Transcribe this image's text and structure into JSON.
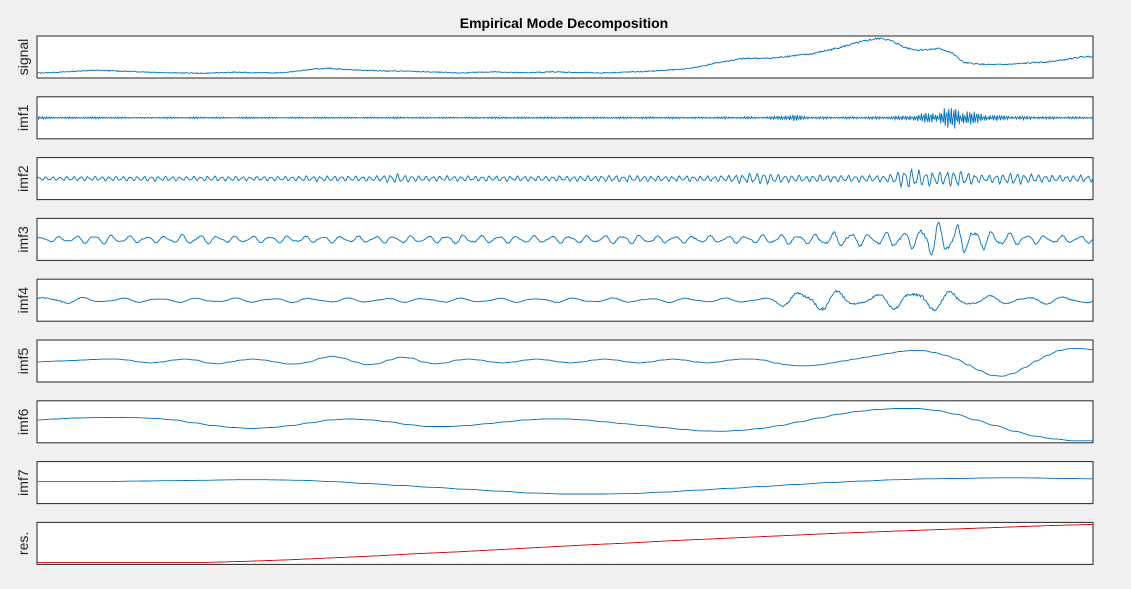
{
  "chart_data": {
    "type": "line",
    "title": "Empirical Mode Decomposition",
    "xlabel": "",
    "grid": false,
    "legend": "none",
    "colors": {
      "series": "#0072bd",
      "residual": "#d40000",
      "axes": "#262626",
      "background": "#f0f0f0",
      "plot_bg": "#ffffff"
    },
    "shared_x_range": [
      0,
      1
    ],
    "panels": [
      {
        "name": "signal",
        "ylabel": "signal",
        "color": "#0072bd",
        "ylim": [
          0,
          1
        ],
        "values": [
          0.08,
          0.09,
          0.1,
          0.12,
          0.14,
          0.15,
          0.14,
          0.13,
          0.12,
          0.11,
          0.1,
          0.09,
          0.08,
          0.08,
          0.07,
          0.08,
          0.09,
          0.1,
          0.09,
          0.09,
          0.08,
          0.09,
          0.12,
          0.16,
          0.19,
          0.2,
          0.18,
          0.16,
          0.15,
          0.14,
          0.13,
          0.13,
          0.12,
          0.11,
          0.1,
          0.09,
          0.08,
          0.09,
          0.1,
          0.11,
          0.1,
          0.09,
          0.09,
          0.1,
          0.11,
          0.1,
          0.09,
          0.09,
          0.08,
          0.09,
          0.1,
          0.11,
          0.12,
          0.14,
          0.16,
          0.18,
          0.22,
          0.28,
          0.35,
          0.4,
          0.45,
          0.47,
          0.46,
          0.48,
          0.52,
          0.55,
          0.58,
          0.65,
          0.72,
          0.8,
          0.88,
          0.95,
          1.0,
          0.9,
          0.75,
          0.68,
          0.7,
          0.72,
          0.6,
          0.35,
          0.32,
          0.3,
          0.3,
          0.31,
          0.33,
          0.35,
          0.37,
          0.4,
          0.45,
          0.5,
          0.52
        ]
      },
      {
        "name": "imf1",
        "ylabel": "imf1",
        "color": "#0072bd",
        "ylim": [
          -1,
          1
        ],
        "envelope": [
          0.08,
          0.06,
          0.05,
          0.05,
          0.04,
          0.05,
          0.06,
          0.05,
          0.04,
          0.04,
          0.03,
          0.04,
          0.05,
          0.04,
          0.04,
          0.05,
          0.05,
          0.04,
          0.04,
          0.04,
          0.05,
          0.05,
          0.04,
          0.04,
          0.04,
          0.04,
          0.04,
          0.04,
          0.05,
          0.04,
          0.04,
          0.04,
          0.04,
          0.05,
          0.05,
          0.04,
          0.04,
          0.04,
          0.04,
          0.04,
          0.04,
          0.04,
          0.04,
          0.05,
          0.05,
          0.05,
          0.05,
          0.05,
          0.05,
          0.05,
          0.05,
          0.06,
          0.05,
          0.05,
          0.05,
          0.05,
          0.05,
          0.05,
          0.05,
          0.05,
          0.05,
          0.05,
          0.05,
          0.05,
          0.06,
          0.06,
          0.06,
          0.06,
          0.06,
          0.06,
          0.08,
          0.22,
          0.15,
          0.08,
          0.07,
          0.06,
          0.06,
          0.06,
          0.07,
          0.07,
          0.08,
          0.1,
          0.12,
          0.18,
          0.25,
          0.35,
          0.55,
          0.6,
          0.45,
          0.3,
          0.2,
          0.15,
          0.12,
          0.1,
          0.08,
          0.08,
          0.07,
          0.07,
          0.06,
          0.06,
          0.06
        ],
        "cycles": 460
      },
      {
        "name": "imf2",
        "ylabel": "imf2",
        "color": "#0072bd",
        "ylim": [
          -1,
          1
        ],
        "envelope": [
          0.1,
          0.1,
          0.1,
          0.12,
          0.12,
          0.12,
          0.12,
          0.12,
          0.12,
          0.12,
          0.13,
          0.14,
          0.14,
          0.12,
          0.12,
          0.12,
          0.12,
          0.14,
          0.14,
          0.12,
          0.12,
          0.12,
          0.12,
          0.12,
          0.12,
          0.13,
          0.14,
          0.15,
          0.15,
          0.14,
          0.13,
          0.13,
          0.14,
          0.18,
          0.25,
          0.2,
          0.15,
          0.14,
          0.14,
          0.14,
          0.14,
          0.14,
          0.14,
          0.14,
          0.14,
          0.14,
          0.14,
          0.14,
          0.14,
          0.14,
          0.14,
          0.14,
          0.14,
          0.15,
          0.17,
          0.18,
          0.18,
          0.16,
          0.15,
          0.15,
          0.15,
          0.15,
          0.15,
          0.15,
          0.15,
          0.17,
          0.2,
          0.25,
          0.3,
          0.3,
          0.25,
          0.2,
          0.18,
          0.18,
          0.18,
          0.18,
          0.18,
          0.18,
          0.18,
          0.18,
          0.18,
          0.25,
          0.45,
          0.5,
          0.4,
          0.35,
          0.4,
          0.45,
          0.35,
          0.25,
          0.2,
          0.25,
          0.3,
          0.28,
          0.25,
          0.2,
          0.18,
          0.18,
          0.18,
          0.18,
          0.15
        ],
        "cycles": 150
      },
      {
        "name": "imf3",
        "ylabel": "imf3",
        "color": "#0072bd",
        "ylim": [
          -1,
          1
        ],
        "envelope": [
          0.15,
          0.15,
          0.15,
          0.15,
          0.2,
          0.25,
          0.25,
          0.25,
          0.2,
          0.18,
          0.18,
          0.18,
          0.18,
          0.2,
          0.25,
          0.25,
          0.22,
          0.2,
          0.18,
          0.18,
          0.18,
          0.18,
          0.18,
          0.18,
          0.18,
          0.18,
          0.18,
          0.18,
          0.18,
          0.18,
          0.18,
          0.18,
          0.18,
          0.2,
          0.22,
          0.2,
          0.18,
          0.18,
          0.2,
          0.22,
          0.25,
          0.25,
          0.22,
          0.2,
          0.2,
          0.2,
          0.2,
          0.2,
          0.2,
          0.2,
          0.2,
          0.2,
          0.2,
          0.2,
          0.22,
          0.25,
          0.25,
          0.22,
          0.2,
          0.2,
          0.2,
          0.2,
          0.2,
          0.2,
          0.2,
          0.2,
          0.2,
          0.2,
          0.22,
          0.25,
          0.25,
          0.25,
          0.25,
          0.25,
          0.3,
          0.35,
          0.4,
          0.4,
          0.35,
          0.3,
          0.35,
          0.45,
          0.4,
          0.5,
          0.8,
          1.0,
          0.9,
          0.8,
          0.7,
          0.6,
          0.5,
          0.4,
          0.35,
          0.3,
          0.25,
          0.22,
          0.2,
          0.2,
          0.2,
          0.2,
          0.2
        ],
        "cycles": 60
      },
      {
        "name": "imf4",
        "ylabel": "imf4",
        "color": "#0072bd",
        "ylim": [
          -1,
          1
        ],
        "envelope": [
          0.2,
          0.2,
          0.2,
          0.18,
          0.15,
          0.12,
          0.12,
          0.12,
          0.12,
          0.12,
          0.12,
          0.12,
          0.12,
          0.12,
          0.12,
          0.12,
          0.12,
          0.12,
          0.12,
          0.12,
          0.12,
          0.12,
          0.12,
          0.12,
          0.12,
          0.12,
          0.12,
          0.12,
          0.12,
          0.12,
          0.12,
          0.12,
          0.12,
          0.12,
          0.12,
          0.12,
          0.12,
          0.12,
          0.12,
          0.12,
          0.12,
          0.12,
          0.12,
          0.12,
          0.12,
          0.12,
          0.12,
          0.12,
          0.12,
          0.12,
          0.12,
          0.12,
          0.12,
          0.12,
          0.12,
          0.12,
          0.12,
          0.12,
          0.12,
          0.12,
          0.12,
          0.12,
          0.12,
          0.12,
          0.12,
          0.12,
          0.12,
          0.12,
          0.12,
          0.14,
          0.2,
          0.4,
          0.55,
          0.6,
          0.6,
          0.55,
          0.45,
          0.35,
          0.3,
          0.3,
          0.35,
          0.45,
          0.55,
          0.6,
          0.6,
          0.55,
          0.5,
          0.45,
          0.4,
          0.3,
          0.25,
          0.22,
          0.2,
          0.2,
          0.2,
          0.2,
          0.2,
          0.2,
          0.2,
          0.2,
          0.2
        ],
        "cycles": 28
      },
      {
        "name": "imf5",
        "ylabel": "imf5",
        "color": "#0072bd",
        "ylim": [
          -1,
          1
        ],
        "values": [
          -0.05,
          -0.02,
          0.0,
          0.02,
          0.05,
          0.08,
          0.1,
          0.1,
          0.05,
          -0.05,
          -0.1,
          -0.05,
          0.05,
          0.1,
          0.05,
          -0.1,
          -0.15,
          -0.05,
          0.05,
          0.1,
          0.05,
          -0.05,
          -0.15,
          -0.15,
          -0.05,
          0.15,
          0.25,
          0.15,
          -0.05,
          -0.2,
          -0.15,
          0.05,
          0.2,
          0.15,
          -0.05,
          -0.15,
          -0.1,
          0.05,
          0.1,
          0.05,
          -0.05,
          -0.1,
          -0.05,
          0.05,
          0.1,
          0.05,
          -0.05,
          -0.1,
          -0.05,
          0.05,
          0.1,
          0.05,
          -0.05,
          -0.1,
          -0.05,
          0.05,
          0.1,
          0.05,
          -0.05,
          -0.1,
          -0.05,
          0.05,
          0.1,
          0.1,
          0.05,
          -0.1,
          -0.2,
          -0.25,
          -0.25,
          -0.2,
          -0.1,
          0.0,
          0.1,
          0.2,
          0.3,
          0.4,
          0.5,
          0.55,
          0.55,
          0.45,
          0.3,
          0.1,
          -0.2,
          -0.5,
          -0.75,
          -0.8,
          -0.65,
          -0.35,
          0.0,
          0.3,
          0.55,
          0.65,
          0.65,
          0.6
        ],
        "smooth": true
      },
      {
        "name": "imf6",
        "ylabel": "imf6",
        "color": "#0072bd",
        "ylim": [
          -1,
          1
        ],
        "values": [
          0.1,
          0.15,
          0.2,
          0.22,
          0.23,
          0.22,
          0.18,
          0.1,
          -0.05,
          -0.2,
          -0.3,
          -0.35,
          -0.3,
          -0.2,
          -0.05,
          0.1,
          0.15,
          0.1,
          0.0,
          -0.15,
          -0.25,
          -0.25,
          -0.2,
          -0.1,
          0.0,
          0.1,
          0.15,
          0.15,
          0.1,
          0.0,
          -0.1,
          -0.2,
          -0.3,
          -0.4,
          -0.48,
          -0.5,
          -0.45,
          -0.35,
          -0.2,
          0.0,
          0.2,
          0.4,
          0.55,
          0.65,
          0.7,
          0.7,
          0.6,
          0.4,
          0.1,
          -0.2,
          -0.5,
          -0.75,
          -0.9,
          -1.0,
          -1.0
        ],
        "smooth": true
      },
      {
        "name": "imf7",
        "ylabel": "imf7",
        "color": "#0072bd",
        "ylim": [
          -1,
          1
        ],
        "values": [
          0.05,
          0.05,
          0.05,
          0.08,
          0.1,
          0.12,
          0.15,
          0.15,
          0.12,
          0.05,
          -0.05,
          -0.15,
          -0.25,
          -0.35,
          -0.45,
          -0.55,
          -0.6,
          -0.6,
          -0.58,
          -0.5,
          -0.4,
          -0.3,
          -0.2,
          -0.1,
          0.0,
          0.08,
          0.15,
          0.2,
          0.22,
          0.25,
          0.25,
          0.22,
          0.2
        ],
        "smooth": true
      },
      {
        "name": "res.",
        "ylabel": "res.",
        "color": "#d40000",
        "ylim": [
          0,
          1
        ],
        "values": [
          0.0,
          0.0,
          0.0,
          0.0,
          0.0,
          0.03,
          0.07,
          0.12,
          0.17,
          0.23,
          0.28,
          0.34,
          0.4,
          0.46,
          0.51,
          0.57,
          0.62,
          0.67,
          0.72,
          0.77,
          0.81,
          0.85,
          0.89,
          0.93,
          0.97,
          1.0
        ]
      }
    ]
  }
}
